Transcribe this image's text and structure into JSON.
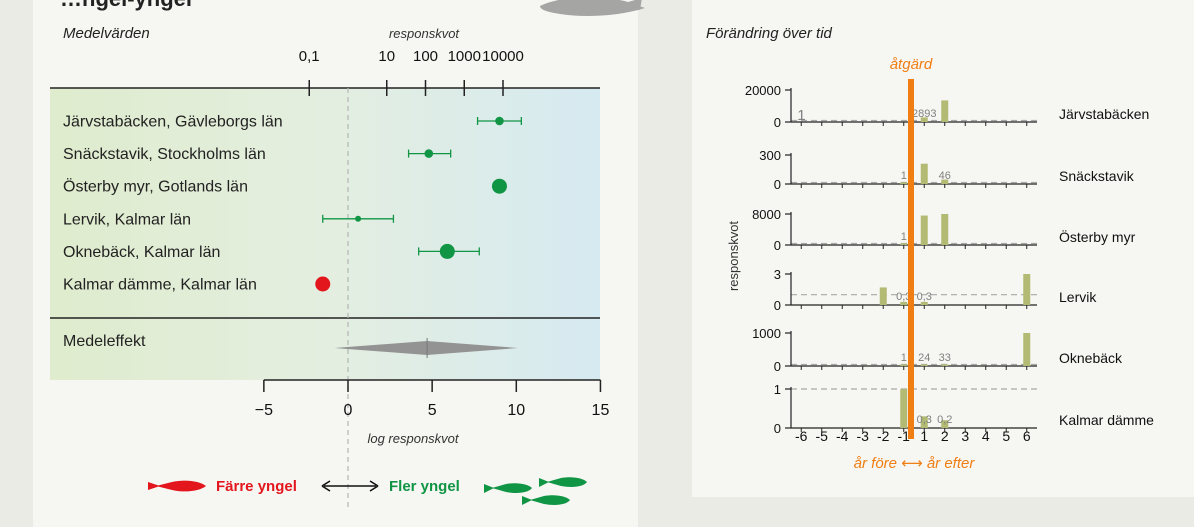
{
  "left": {
    "header_partial": "…ngel-yngel",
    "panel_title": "Medelvärden",
    "top_axis_label": "responskvot",
    "top_ticks": [
      "0,1",
      "10",
      "100",
      "1000",
      "10000"
    ],
    "summary_label": "Medeleffekt",
    "bottom_axis_label": "log responskvot",
    "legend_fewer": "Färre yngel",
    "legend_more": "Fler yngel",
    "colors": {
      "positive": "#109544",
      "negative": "#e3161e",
      "summary": "#939393"
    }
  },
  "right": {
    "panel_title": "Förändring över tid",
    "intervention_label": "åtgärd",
    "y_axis_label": "responskvot",
    "x_axis_label": "år före ⟷ år efter",
    "bar_color": "#b3ba74",
    "line_color": "#f07e12"
  },
  "chart_data": [
    {
      "type": "scatter",
      "title": "Medelvärden",
      "xlabel": "log responskvot",
      "top_axis_label": "responskvot",
      "top_tick_labels": [
        "0,1",
        "10",
        "100",
        "1000",
        "10000"
      ],
      "xlim": [
        -5,
        15
      ],
      "x_ticks": [
        -5,
        0,
        5,
        10,
        15
      ],
      "x_tick_labels": [
        "−5",
        "0",
        "5",
        "10",
        "15"
      ],
      "series": [
        {
          "label": "Järvstabäcken, Gävleborgs län",
          "value": 9.0,
          "ci": [
            7.7,
            10.3
          ],
          "size": "small",
          "color": "green"
        },
        {
          "label": "Snäckstavik, Stockholms län",
          "value": 4.8,
          "ci": [
            3.6,
            6.1
          ],
          "size": "small",
          "color": "green"
        },
        {
          "label": "Österby myr, Gotlands län",
          "value": 9.0,
          "ci": null,
          "size": "large",
          "color": "green"
        },
        {
          "label": "Lervik, Kalmar län",
          "value": 0.6,
          "ci": [
            -1.5,
            2.7
          ],
          "size": "tiny",
          "color": "green"
        },
        {
          "label": "Oknebäck, Kalmar län",
          "value": 5.9,
          "ci": [
            4.2,
            7.8
          ],
          "size": "large",
          "color": "green"
        },
        {
          "label": "Kalmar dämme, Kalmar län",
          "value": -1.5,
          "ci": null,
          "size": "large",
          "color": "red"
        }
      ],
      "summary": {
        "label": "Medeleffekt",
        "value": 4.7,
        "ci": [
          -0.8,
          10.1
        ]
      },
      "legend": [
        "Färre yngel",
        "Fler yngel"
      ]
    },
    {
      "type": "bar",
      "title": "Förändring över tid",
      "xlabel": "år före ⟷ år efter",
      "ylabel": "responskvot",
      "x": [
        -6,
        -5,
        -4,
        -3,
        -2,
        -1,
        1,
        2,
        3,
        4,
        5,
        6
      ],
      "x_tick_labels": [
        "-6",
        "-5",
        "-4",
        "-3",
        "-2",
        "-1",
        "1",
        "2",
        "3",
        "4",
        "5",
        "6"
      ],
      "intervention_label": "åtgärd",
      "panels": [
        {
          "name": "Järvstabäcken",
          "ylim": [
            0,
            20000
          ],
          "yticks": [
            0,
            20000
          ],
          "bars": [
            {
              "x": 1,
              "value": 2893
            },
            {
              "x": 2,
              "value": 13500
            }
          ],
          "labels": [
            {
              "x": -6,
              "text": "1"
            },
            {
              "x": 1,
              "text": "2893"
            }
          ]
        },
        {
          "name": "Snäckstavik",
          "ylim": [
            0,
            300
          ],
          "yticks": [
            0,
            300
          ],
          "bars": [
            {
              "x": -1,
              "value": 1
            },
            {
              "x": 1,
              "value": 210
            },
            {
              "x": 2,
              "value": 46
            }
          ],
          "labels": [
            {
              "x": -1,
              "text": "1"
            },
            {
              "x": 2,
              "text": "46"
            }
          ]
        },
        {
          "name": "Österby myr",
          "ylim": [
            0,
            8000
          ],
          "yticks": [
            0,
            8000
          ],
          "bars": [
            {
              "x": -1,
              "value": 1
            },
            {
              "x": 1,
              "value": 7600
            },
            {
              "x": 2,
              "value": 8000
            }
          ],
          "labels": [
            {
              "x": -1,
              "text": "1"
            }
          ]
        },
        {
          "name": "Lervik",
          "ylim": [
            0,
            3
          ],
          "yticks": [
            0,
            3
          ],
          "bars": [
            {
              "x": -2,
              "value": 1.7
            },
            {
              "x": -1,
              "value": 0.3
            },
            {
              "x": 1,
              "value": 0.3
            },
            {
              "x": 6,
              "value": 3.0
            }
          ],
          "labels": [
            {
              "x": -1,
              "text": "0,3"
            },
            {
              "x": 1,
              "text": "0,3"
            }
          ]
        },
        {
          "name": "Oknebäck",
          "ylim": [
            0,
            1000
          ],
          "yticks": [
            0,
            1000
          ],
          "bars": [
            {
              "x": -1,
              "value": 1
            },
            {
              "x": 1,
              "value": 24
            },
            {
              "x": 2,
              "value": 33
            },
            {
              "x": 6,
              "value": 1000
            }
          ],
          "labels": [
            {
              "x": -1,
              "text": "1"
            },
            {
              "x": 1,
              "text": "24"
            },
            {
              "x": 2,
              "text": "33"
            }
          ]
        },
        {
          "name": "Kalmar dämme",
          "ylim": [
            0,
            1
          ],
          "yticks": [
            0,
            1
          ],
          "bars": [
            {
              "x": -1,
              "value": 1.0
            },
            {
              "x": 1,
              "value": 0.3
            },
            {
              "x": 2,
              "value": 0.2
            }
          ],
          "labels": [
            {
              "x": 1,
              "text": "0,3"
            },
            {
              "x": 2,
              "text": "0,2"
            }
          ]
        }
      ]
    }
  ]
}
